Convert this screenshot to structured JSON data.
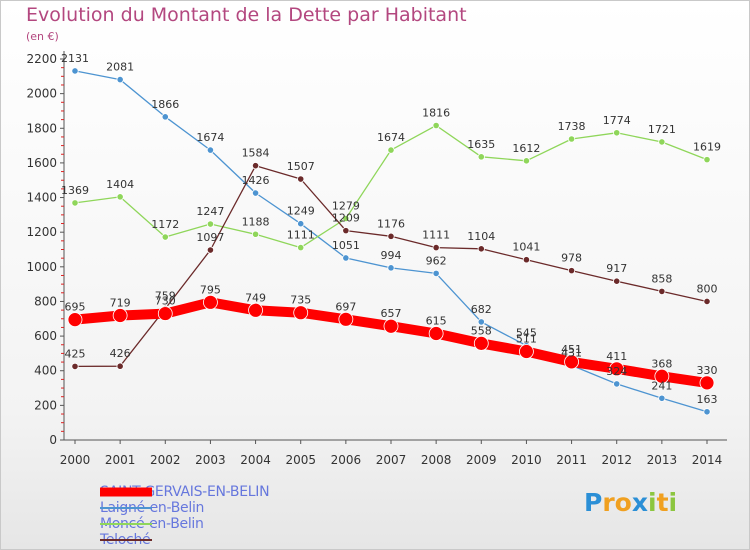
{
  "title": "Evolution du Montant de la Dette par Habitant",
  "unit_label": "(en €)",
  "logo": {
    "text": "Proxiti",
    "letters": [
      {
        "ch": "P",
        "color": "#2b8fd6"
      },
      {
        "ch": "r",
        "color": "#f0a020"
      },
      {
        "ch": "o",
        "color": "#f0a020"
      },
      {
        "ch": "x",
        "color": "#2b8fd6"
      },
      {
        "ch": "i",
        "color": "#8cc63f"
      },
      {
        "ch": "t",
        "color": "#f0a020"
      },
      {
        "ch": "i",
        "color": "#8cc63f"
      }
    ]
  },
  "chart_data": {
    "type": "line",
    "title": "Evolution du Montant de la Dette par Habitant",
    "ylabel": "(en €)",
    "xlabel": "",
    "x": [
      "2000",
      "2001",
      "2002",
      "2003",
      "2004",
      "2005",
      "2006",
      "2007",
      "2008",
      "2009",
      "2010",
      "2011",
      "2012",
      "2013",
      "2014"
    ],
    "ylim": [
      0,
      2200
    ],
    "yticks": [
      "0",
      "200",
      "400",
      "600",
      "800",
      "1000",
      "1200",
      "1400",
      "1600",
      "1800",
      "2000",
      "2200"
    ],
    "grid": false,
    "legend_position": "bottom-left",
    "series": [
      {
        "name": "SAINT-GERVAIS-EN-BELIN",
        "color": "#ff0000",
        "values": [
          695,
          719,
          730,
          795,
          749,
          735,
          697,
          657,
          615,
          558,
          511,
          451,
          411,
          368,
          330
        ]
      },
      {
        "name": "Laigné-en-Belin",
        "color": "#4d94d1",
        "values": [
          2131,
          2081,
          1866,
          1674,
          1426,
          1249,
          1051,
          994,
          962,
          682,
          545,
          431,
          324,
          241,
          163
        ]
      },
      {
        "name": "Moncé-en-Belin",
        "color": "#8fd65a",
        "values": [
          1369,
          1404,
          1172,
          1247,
          1188,
          1111,
          1279,
          1674,
          1816,
          1635,
          1612,
          1738,
          1774,
          1721,
          1619
        ]
      },
      {
        "name": "Teloché",
        "color": "#6b2a2a",
        "values": [
          425,
          426,
          759,
          1097,
          1584,
          1507,
          1209,
          1176,
          1111,
          1104,
          1041,
          978,
          917,
          858,
          800
        ]
      }
    ]
  }
}
